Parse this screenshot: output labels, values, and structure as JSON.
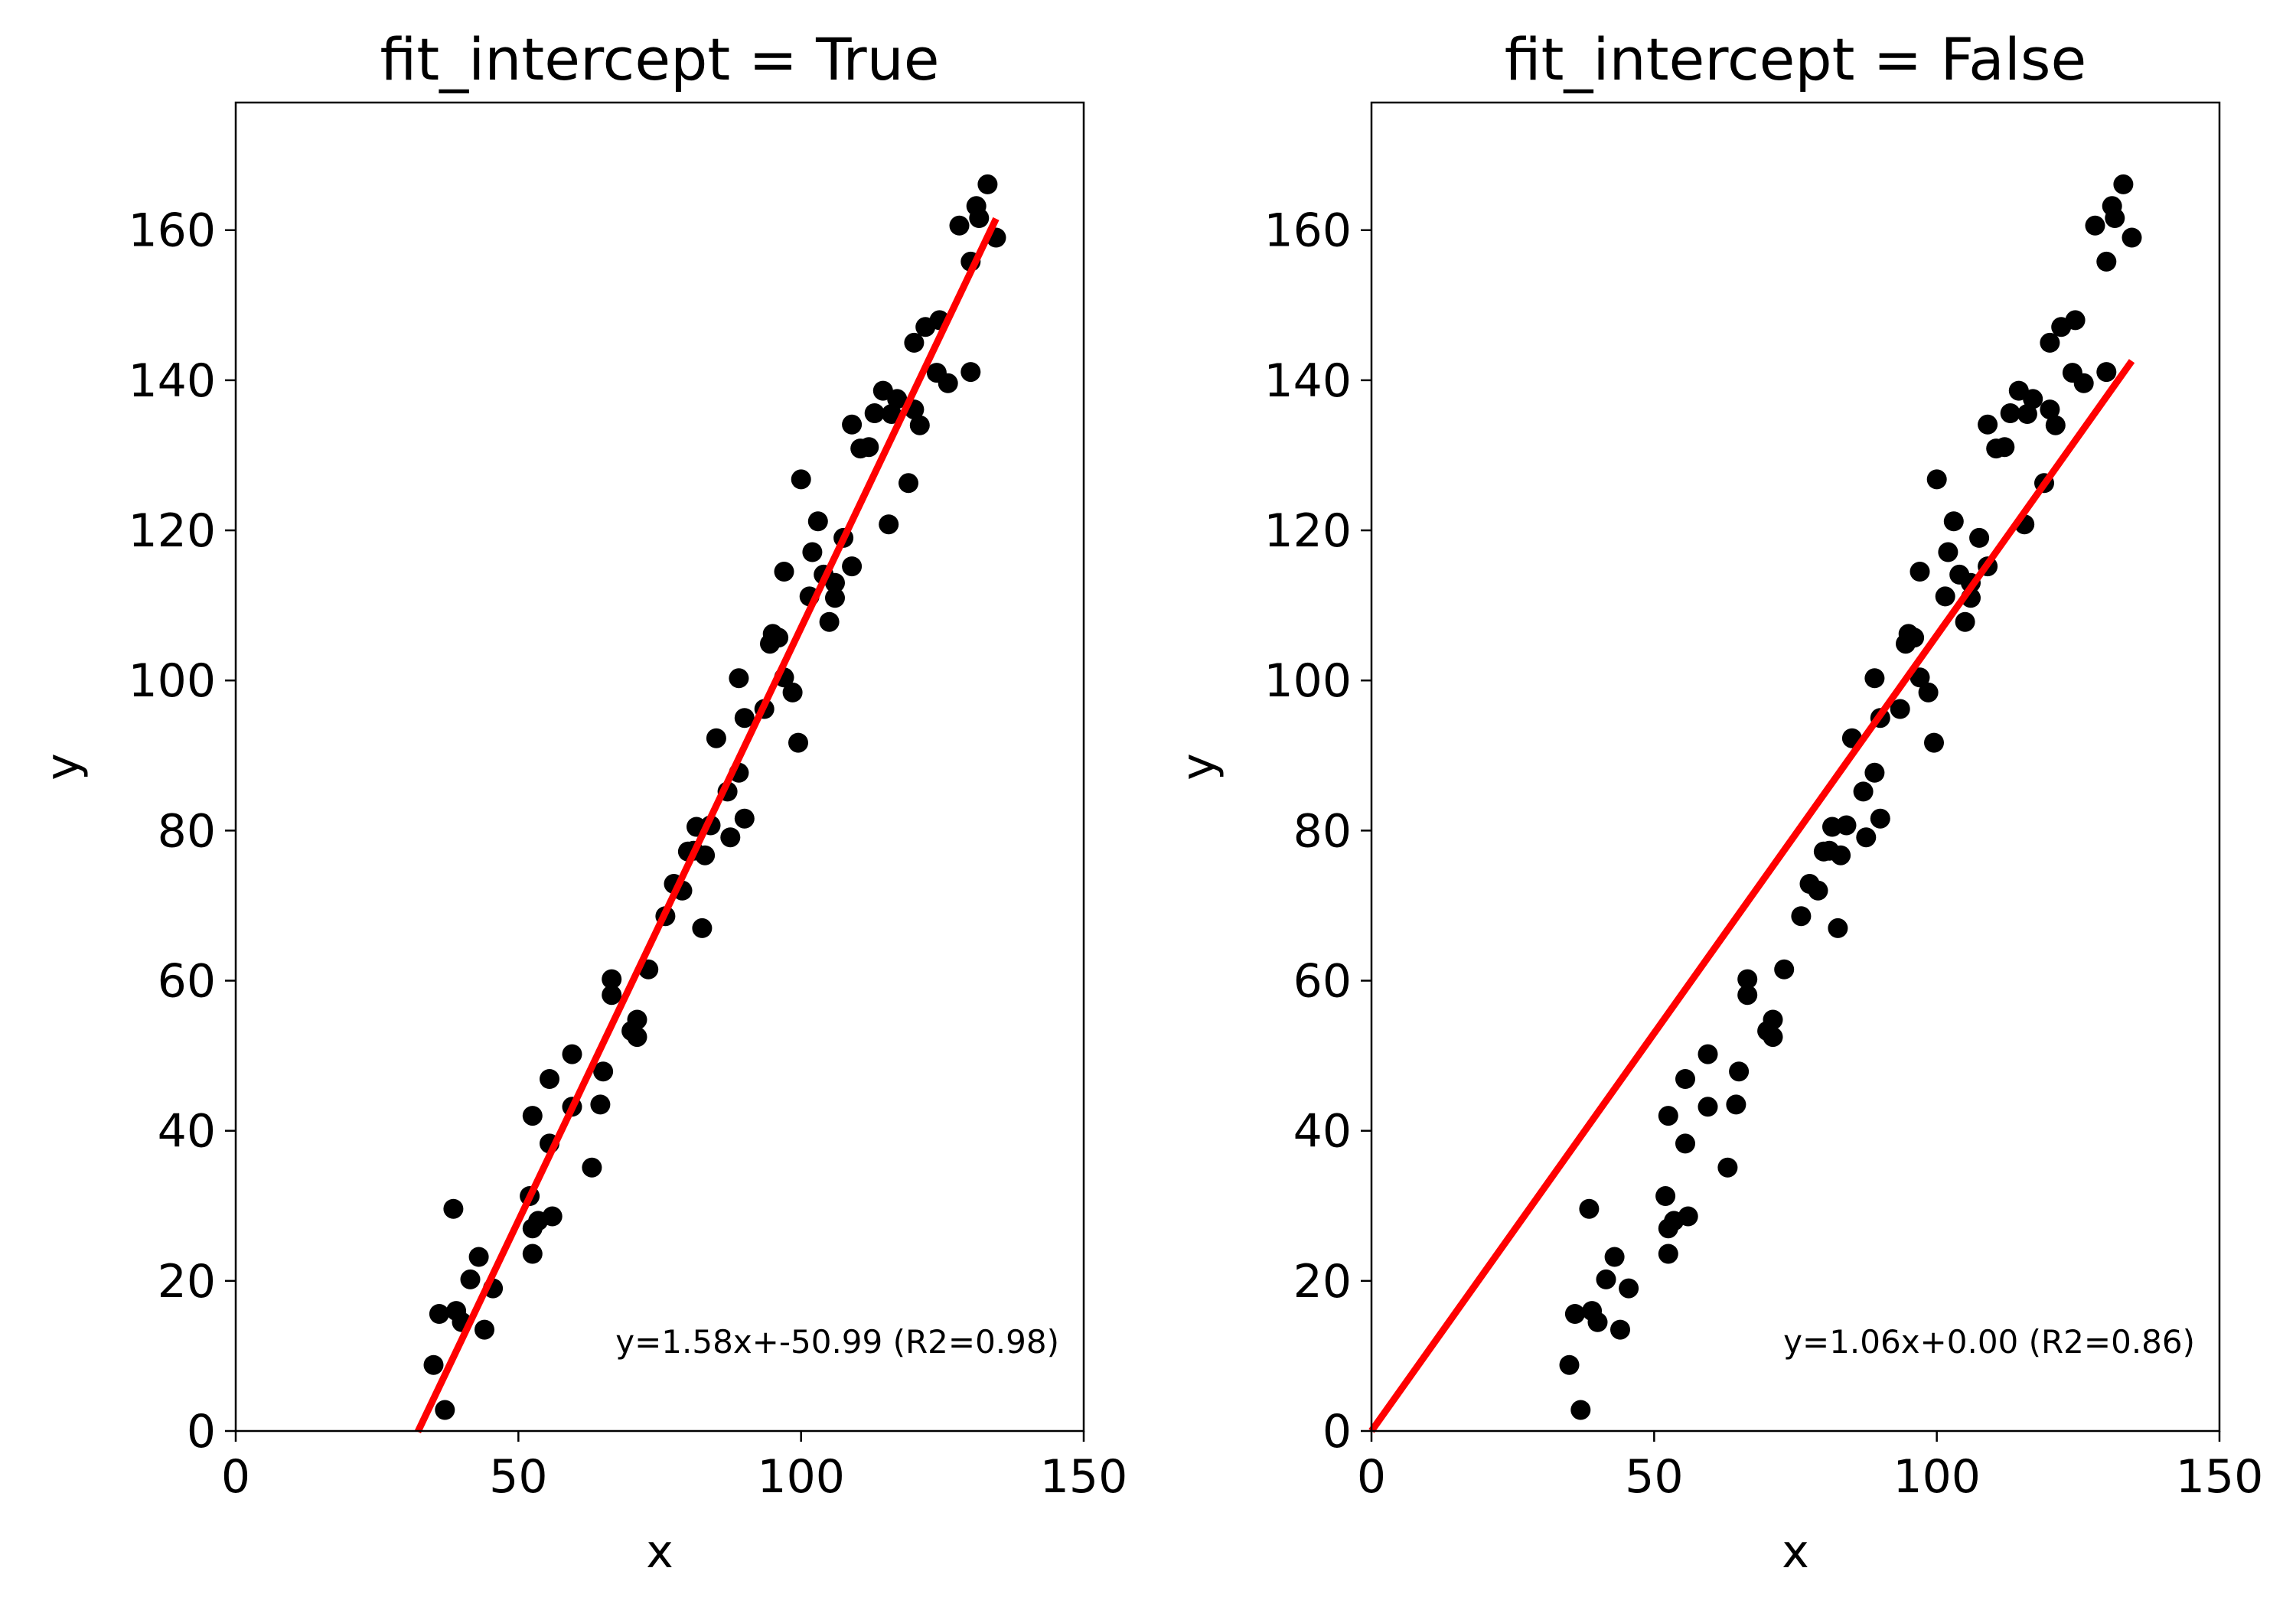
{
  "chart_data": [
    {
      "type": "scatter",
      "title": "fit_intercept = True",
      "xlabel": "x",
      "ylabel": "y",
      "xlim": [
        0,
        150
      ],
      "ylim": [
        0,
        177
      ],
      "xticks": [
        "0",
        "50",
        "100",
        "150"
      ],
      "yticks": [
        "0",
        "20",
        "40",
        "60",
        "80",
        "100",
        "120",
        "140",
        "160"
      ],
      "annotation": "y=1.58x+-50.99 (R2=0.98)",
      "grid": false,
      "colors": {
        "points": "#000000",
        "fit_line": "#ff0000"
      },
      "fit_line": {
        "slope": 1.58,
        "intercept": -50.99,
        "x_range": [
          32.2,
          134.5
        ]
      },
      "points": [
        [
          35.0,
          8.8
        ],
        [
          36.0,
          15.6
        ],
        [
          37.0,
          2.8
        ],
        [
          38.5,
          29.6
        ],
        [
          39.0,
          16.0
        ],
        [
          40.0,
          14.5
        ],
        [
          41.5,
          20.2
        ],
        [
          43.0,
          23.2
        ],
        [
          44.0,
          13.5
        ],
        [
          45.5,
          19.0
        ],
        [
          52.0,
          31.3
        ],
        [
          52.5,
          42.0
        ],
        [
          52.5,
          27.0
        ],
        [
          52.5,
          23.6
        ],
        [
          53.5,
          28.0
        ],
        [
          55.5,
          46.9
        ],
        [
          55.5,
          38.3
        ],
        [
          56.0,
          28.6
        ],
        [
          59.5,
          50.2
        ],
        [
          59.5,
          43.2
        ],
        [
          63.0,
          35.1
        ],
        [
          64.5,
          43.5
        ],
        [
          65.0,
          47.9
        ],
        [
          66.5,
          60.2
        ],
        [
          66.5,
          58.1
        ],
        [
          70.0,
          53.3
        ],
        [
          71.0,
          52.5
        ],
        [
          71.0,
          54.8
        ],
        [
          73.0,
          61.5
        ],
        [
          76.0,
          68.6
        ],
        [
          77.5,
          72.9
        ],
        [
          79.0,
          72.0
        ],
        [
          80.0,
          77.2
        ],
        [
          81.0,
          77.3
        ],
        [
          81.5,
          80.5
        ],
        [
          82.5,
          67.0
        ],
        [
          83.0,
          76.7
        ],
        [
          84.0,
          80.7
        ],
        [
          85.0,
          92.3
        ],
        [
          87.0,
          85.2
        ],
        [
          87.5,
          79.1
        ],
        [
          89.0,
          100.3
        ],
        [
          89.0,
          87.7
        ],
        [
          90.0,
          81.6
        ],
        [
          90.0,
          95.0
        ],
        [
          93.5,
          96.2
        ],
        [
          94.5,
          104.9
        ],
        [
          95.0,
          106.2
        ],
        [
          96.0,
          105.7
        ],
        [
          97.0,
          114.5
        ],
        [
          97.0,
          100.4
        ],
        [
          98.5,
          98.4
        ],
        [
          99.5,
          91.7
        ],
        [
          100.0,
          126.8
        ],
        [
          101.5,
          111.2
        ],
        [
          102.0,
          117.1
        ],
        [
          103.0,
          121.2
        ],
        [
          104.0,
          114.1
        ],
        [
          105.0,
          107.8
        ],
        [
          106.0,
          111.0
        ],
        [
          106.0,
          113.0
        ],
        [
          107.5,
          119.0
        ],
        [
          109.0,
          115.2
        ],
        [
          109.0,
          134.1
        ],
        [
          110.5,
          130.9
        ],
        [
          112.0,
          131.1
        ],
        [
          113.0,
          135.6
        ],
        [
          114.5,
          138.6
        ],
        [
          115.5,
          120.8
        ],
        [
          116.0,
          135.5
        ],
        [
          117.0,
          137.5
        ],
        [
          119.0,
          126.3
        ],
        [
          120.0,
          136.1
        ],
        [
          120.0,
          145.0
        ],
        [
          121.0,
          134.0
        ],
        [
          122.0,
          147.1
        ],
        [
          124.0,
          141.0
        ],
        [
          124.5,
          148.0
        ],
        [
          126.0,
          139.6
        ],
        [
          128.0,
          160.6
        ],
        [
          130.0,
          155.8
        ],
        [
          130.0,
          141.1
        ],
        [
          131.0,
          163.2
        ],
        [
          131.5,
          161.6
        ],
        [
          133.0,
          166.1
        ],
        [
          134.5,
          159.0
        ]
      ]
    },
    {
      "type": "scatter",
      "title": "fit_intercept = False",
      "xlabel": "x",
      "ylabel": "y",
      "xlim": [
        0,
        150
      ],
      "ylim": [
        0,
        177
      ],
      "xticks": [
        "0",
        "50",
        "100",
        "150"
      ],
      "yticks": [
        "0",
        "20",
        "40",
        "60",
        "80",
        "100",
        "120",
        "140",
        "160"
      ],
      "annotation": "y=1.06x+0.00 (R2=0.86)",
      "grid": false,
      "colors": {
        "points": "#000000",
        "fit_line": "#ff0000"
      },
      "fit_line": {
        "slope": 1.06,
        "intercept": 0.0,
        "x_range": [
          0,
          134.5
        ]
      },
      "points": [
        [
          35.0,
          8.8
        ],
        [
          36.0,
          15.6
        ],
        [
          37.0,
          2.8
        ],
        [
          38.5,
          29.6
        ],
        [
          39.0,
          16.0
        ],
        [
          40.0,
          14.5
        ],
        [
          41.5,
          20.2
        ],
        [
          43.0,
          23.2
        ],
        [
          44.0,
          13.5
        ],
        [
          45.5,
          19.0
        ],
        [
          52.0,
          31.3
        ],
        [
          52.5,
          42.0
        ],
        [
          52.5,
          27.0
        ],
        [
          52.5,
          23.6
        ],
        [
          53.5,
          28.0
        ],
        [
          55.5,
          46.9
        ],
        [
          55.5,
          38.3
        ],
        [
          56.0,
          28.6
        ],
        [
          59.5,
          50.2
        ],
        [
          59.5,
          43.2
        ],
        [
          63.0,
          35.1
        ],
        [
          64.5,
          43.5
        ],
        [
          65.0,
          47.9
        ],
        [
          66.5,
          60.2
        ],
        [
          66.5,
          58.1
        ],
        [
          70.0,
          53.3
        ],
        [
          71.0,
          52.5
        ],
        [
          71.0,
          54.8
        ],
        [
          73.0,
          61.5
        ],
        [
          76.0,
          68.6
        ],
        [
          77.5,
          72.9
        ],
        [
          79.0,
          72.0
        ],
        [
          80.0,
          77.2
        ],
        [
          81.0,
          77.3
        ],
        [
          81.5,
          80.5
        ],
        [
          82.5,
          67.0
        ],
        [
          83.0,
          76.7
        ],
        [
          84.0,
          80.7
        ],
        [
          85.0,
          92.3
        ],
        [
          87.0,
          85.2
        ],
        [
          87.5,
          79.1
        ],
        [
          89.0,
          100.3
        ],
        [
          89.0,
          87.7
        ],
        [
          90.0,
          81.6
        ],
        [
          90.0,
          95.0
        ],
        [
          93.5,
          96.2
        ],
        [
          94.5,
          104.9
        ],
        [
          95.0,
          106.2
        ],
        [
          96.0,
          105.7
        ],
        [
          97.0,
          114.5
        ],
        [
          97.0,
          100.4
        ],
        [
          98.5,
          98.4
        ],
        [
          99.5,
          91.7
        ],
        [
          100.0,
          126.8
        ],
        [
          101.5,
          111.2
        ],
        [
          102.0,
          117.1
        ],
        [
          103.0,
          121.2
        ],
        [
          104.0,
          114.1
        ],
        [
          105.0,
          107.8
        ],
        [
          106.0,
          111.0
        ],
        [
          106.0,
          113.0
        ],
        [
          107.5,
          119.0
        ],
        [
          109.0,
          115.2
        ],
        [
          109.0,
          134.1
        ],
        [
          110.5,
          130.9
        ],
        [
          112.0,
          131.1
        ],
        [
          113.0,
          135.6
        ],
        [
          114.5,
          138.6
        ],
        [
          115.5,
          120.8
        ],
        [
          116.0,
          135.5
        ],
        [
          117.0,
          137.5
        ],
        [
          119.0,
          126.3
        ],
        [
          120.0,
          136.1
        ],
        [
          120.0,
          145.0
        ],
        [
          121.0,
          134.0
        ],
        [
          122.0,
          147.1
        ],
        [
          124.0,
          141.0
        ],
        [
          124.5,
          148.0
        ],
        [
          126.0,
          139.6
        ],
        [
          128.0,
          160.6
        ],
        [
          130.0,
          155.8
        ],
        [
          130.0,
          141.1
        ],
        [
          131.0,
          163.2
        ],
        [
          131.5,
          161.6
        ],
        [
          133.0,
          166.1
        ],
        [
          134.5,
          159.0
        ]
      ]
    }
  ]
}
